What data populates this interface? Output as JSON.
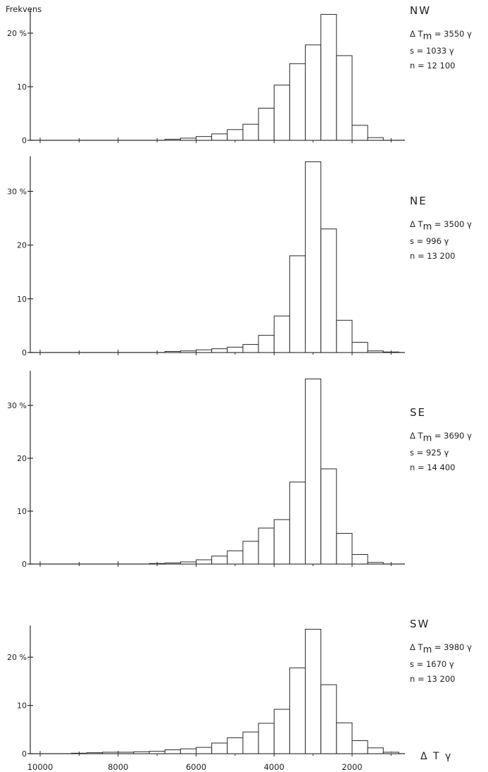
{
  "figure": {
    "y_title": "Frekvens",
    "x_label": "Δ T γ",
    "x_ticks": [
      10000,
      8000,
      6000,
      4000,
      2000
    ]
  },
  "chart_data": [
    {
      "type": "bar",
      "name": "NW",
      "bin_width": 400,
      "bin_lefts": [
        6800,
        6400,
        6000,
        5600,
        5200,
        4800,
        4400,
        4000,
        3600,
        3200,
        2800,
        2400,
        2000,
        1600
      ],
      "values": [
        0.2,
        0.4,
        0.7,
        1.2,
        2.0,
        3.0,
        6.0,
        10.3,
        14.3,
        17.8,
        23.5,
        15.8,
        2.8,
        0.5
      ],
      "ylim": [
        0,
        24
      ],
      "y_ticks": [
        {
          "v": 0,
          "label": "0"
        },
        {
          "v": 10,
          "label": "10"
        },
        {
          "v": 20,
          "label": "20 %"
        }
      ],
      "stats": {
        "mean_label": "Δ T",
        "mean_sub": "m",
        "mean_value": "= 3550 γ",
        "s": "s = 1033  γ",
        "n": "n = 12 100"
      }
    },
    {
      "type": "bar",
      "name": "NE",
      "bin_width": 400,
      "bin_lefts": [
        6800,
        6400,
        6000,
        5600,
        5200,
        4800,
        4400,
        4000,
        3600,
        3200,
        2800,
        2400,
        2000,
        1600,
        1200
      ],
      "values": [
        0.2,
        0.3,
        0.5,
        0.7,
        1.0,
        1.5,
        3.2,
        6.8,
        18.0,
        35.5,
        23.0,
        6.0,
        1.9,
        0.3,
        0.1
      ],
      "ylim": [
        0,
        36
      ],
      "y_ticks": [
        {
          "v": 0,
          "label": "0"
        },
        {
          "v": 10,
          "label": "10"
        },
        {
          "v": 20,
          "label": "20"
        },
        {
          "v": 30,
          "label": "30 %"
        }
      ],
      "stats": {
        "mean_label": "Δ T",
        "mean_sub": "m",
        "mean_value": "= 3500 γ",
        "s": "s = 996  γ",
        "n": "n = 13 200"
      }
    },
    {
      "type": "bar",
      "name": "SE",
      "bin_width": 400,
      "bin_lefts": [
        7200,
        6800,
        6400,
        6000,
        5600,
        5200,
        4800,
        4400,
        4000,
        3600,
        3200,
        2800,
        2400,
        2000,
        1600
      ],
      "values": [
        0.1,
        0.2,
        0.4,
        0.8,
        1.5,
        2.5,
        4.3,
        6.8,
        8.4,
        15.5,
        35.0,
        18.0,
        5.8,
        1.8,
        0.3
      ],
      "ylim": [
        0,
        36
      ],
      "y_ticks": [
        {
          "v": 0,
          "label": "0"
        },
        {
          "v": 10,
          "label": "10"
        },
        {
          "v": 20,
          "label": "20"
        },
        {
          "v": 30,
          "label": "30 %"
        }
      ],
      "stats": {
        "mean_label": "Δ T",
        "mean_sub": "m",
        "mean_value": "= 3690 γ",
        "s": "s = 925  γ",
        "n": "n = 14 400"
      }
    },
    {
      "type": "bar",
      "name": "SW",
      "bin_width": 400,
      "bin_lefts": [
        9200,
        8800,
        8400,
        8000,
        7600,
        7200,
        6800,
        6400,
        6000,
        5600,
        5200,
        4800,
        4400,
        4000,
        3600,
        3200,
        2800,
        2400,
        2000,
        1600,
        1200
      ],
      "values": [
        0.1,
        0.2,
        0.3,
        0.3,
        0.4,
        0.5,
        0.8,
        1.0,
        1.3,
        2.2,
        3.3,
        4.5,
        6.3,
        9.2,
        17.8,
        25.8,
        14.3,
        6.4,
        2.7,
        1.2,
        0.3
      ],
      "ylim": [
        0,
        26
      ],
      "y_ticks": [
        {
          "v": 0,
          "label": "0"
        },
        {
          "v": 10,
          "label": "10"
        },
        {
          "v": 20,
          "label": "20 %"
        }
      ],
      "stats": {
        "mean_label": "Δ T",
        "mean_sub": "m",
        "mean_value": "= 3980 γ",
        "s": "s = 1670  γ",
        "n": "n = 13 200"
      }
    }
  ]
}
